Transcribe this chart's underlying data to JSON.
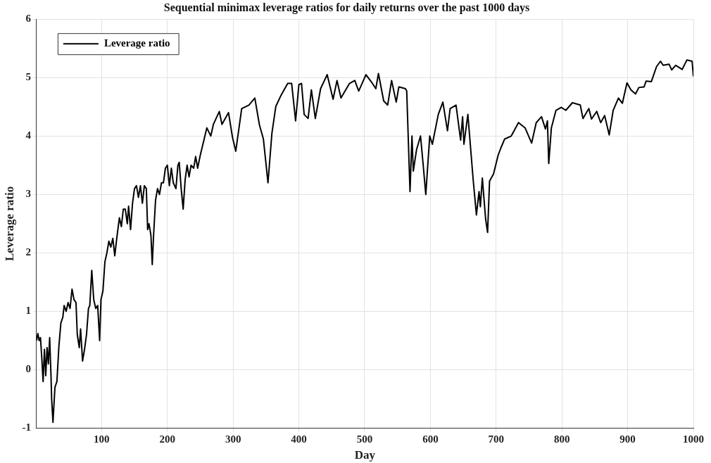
{
  "chart_data": {
    "type": "line",
    "title": "Sequential minimax leverage ratios for daily returns over the past 1000 days",
    "xlabel": "Day",
    "ylabel": "Leverage ratio",
    "xlim": [
      1,
      1000
    ],
    "xticks": [
      100,
      200,
      300,
      400,
      500,
      600,
      700,
      800,
      900,
      1000
    ],
    "ylim": [
      -1,
      6
    ],
    "yticks": [
      -1,
      0,
      1,
      2,
      3,
      4,
      5,
      6
    ],
    "grid": true,
    "legend": "top left",
    "marker": "none",
    "line_style": "solid",
    "series": [
      {
        "name": "Leverage ratio",
        "color": "#000000",
        "x": [
          1,
          3,
          5,
          7,
          9,
          11,
          13,
          15,
          17,
          19,
          21,
          23,
          24,
          26,
          29,
          32,
          35,
          38,
          41,
          43,
          46,
          49,
          52,
          55,
          58,
          61,
          63,
          66,
          68,
          71,
          74,
          77,
          80,
          82,
          85,
          88,
          91,
          94,
          97,
          99,
          102,
          105,
          108,
          111,
          114,
          117,
          120,
          123,
          127,
          130,
          133,
          136,
          139,
          141,
          144,
          147,
          150,
          153,
          156,
          159,
          162,
          165,
          168,
          170,
          172,
          175,
          177,
          179,
          182,
          185,
          188,
          191,
          194,
          197,
          200,
          203,
          206,
          209,
          213,
          216,
          218,
          221,
          224,
          227,
          230,
          233,
          236,
          240,
          243,
          246,
          250,
          260,
          266,
          270,
          279,
          283,
          293,
          299,
          304,
          313,
          324,
          333,
          340,
          346,
          353,
          359,
          365,
          373,
          383,
          389,
          395,
          400,
          404,
          408,
          414,
          419,
          425,
          433,
          443,
          452,
          458,
          464,
          477,
          485,
          491,
          502,
          510,
          517,
          521,
          529,
          535,
          541,
          548,
          552,
          562,
          564,
          569,
          572,
          574,
          579,
          585,
          589,
          593,
          599,
          603,
          612,
          619,
          626,
          630,
          639,
          646,
          649,
          651,
          657,
          665,
          670,
          674,
          676,
          679,
          684,
          687,
          690,
          696,
          703,
          707,
          713,
          723,
          734,
          744,
          754,
          761,
          769,
          775,
          778,
          780,
          784,
          791,
          799,
          806,
          816,
          828,
          832,
          841,
          845,
          853,
          859,
          865,
          872,
          878,
          886,
          892,
          899,
          905,
          912,
          917,
          925,
          928,
          936,
          944,
          950,
          954,
          963,
          967,
          973,
          983,
          990,
          998,
          1000
        ],
        "values": [
          0.5,
          0.62,
          0.5,
          0.55,
          0.2,
          -0.2,
          0.35,
          -0.1,
          0.38,
          0.1,
          0.55,
          -0.1,
          -0.5,
          -0.9,
          -0.3,
          -0.2,
          0.4,
          0.8,
          0.9,
          1.1,
          1.0,
          1.15,
          1.05,
          1.38,
          1.2,
          1.15,
          0.6,
          0.38,
          0.7,
          0.15,
          0.35,
          0.6,
          1.05,
          1.1,
          1.7,
          1.2,
          1.05,
          1.1,
          0.5,
          1.2,
          1.35,
          1.85,
          2.0,
          2.2,
          2.1,
          2.25,
          1.95,
          2.25,
          2.6,
          2.45,
          2.75,
          2.75,
          2.5,
          2.8,
          2.4,
          2.85,
          3.1,
          3.15,
          2.95,
          3.15,
          2.85,
          3.15,
          3.1,
          2.4,
          2.5,
          2.3,
          1.8,
          2.3,
          2.9,
          3.1,
          3.0,
          3.2,
          3.2,
          3.45,
          3.5,
          3.15,
          3.45,
          3.2,
          3.1,
          3.5,
          3.55,
          3.1,
          2.75,
          3.25,
          3.5,
          3.3,
          3.5,
          3.45,
          3.65,
          3.45,
          3.67,
          4.14,
          4.0,
          4.2,
          4.42,
          4.2,
          4.4,
          3.98,
          3.74,
          4.47,
          4.53,
          4.65,
          4.19,
          3.95,
          3.2,
          4.05,
          4.51,
          4.7,
          4.9,
          4.9,
          4.26,
          4.88,
          4.9,
          4.37,
          4.3,
          4.79,
          4.3,
          4.81,
          5.05,
          4.63,
          4.95,
          4.65,
          4.9,
          4.95,
          4.77,
          5.05,
          4.93,
          4.81,
          5.07,
          4.6,
          4.53,
          4.95,
          4.58,
          4.84,
          4.81,
          4.77,
          3.05,
          4.0,
          3.4,
          3.77,
          4.0,
          3.51,
          3.0,
          4.0,
          3.86,
          4.37,
          4.58,
          4.09,
          4.47,
          4.53,
          3.93,
          4.33,
          3.86,
          4.37,
          3.26,
          2.65,
          3.05,
          2.79,
          3.28,
          2.58,
          2.35,
          3.23,
          3.35,
          3.67,
          3.79,
          3.95,
          4.0,
          4.23,
          4.14,
          3.88,
          4.23,
          4.33,
          4.12,
          4.26,
          3.53,
          4.14,
          4.44,
          4.49,
          4.44,
          4.57,
          4.53,
          4.3,
          4.47,
          4.29,
          4.42,
          4.23,
          4.35,
          4.02,
          4.44,
          4.65,
          4.56,
          4.91,
          4.79,
          4.72,
          4.83,
          4.84,
          4.94,
          4.93,
          5.19,
          5.28,
          5.21,
          5.23,
          5.13,
          5.21,
          5.14,
          5.3,
          5.28,
          5.02
        ]
      }
    ]
  }
}
